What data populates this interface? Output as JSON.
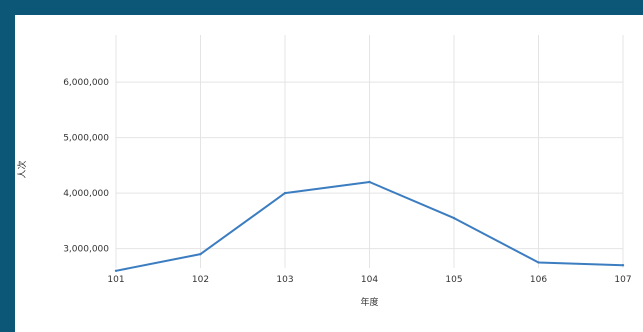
{
  "chart_data": {
    "type": "line",
    "title": "",
    "xlabel": "年度",
    "ylabel": "人次",
    "x": [
      "101",
      "102",
      "103",
      "104",
      "105",
      "106",
      "107"
    ],
    "series": [
      {
        "values": [
          2600000,
          2900000,
          4000000,
          4200000,
          3550000,
          2750000,
          2700000
        ]
      }
    ],
    "yticks": [
      3000000,
      4000000,
      5000000,
      6000000
    ],
    "ytick_labels": [
      "3,000,000",
      "4,000,000",
      "5,000,000",
      "6,000,000"
    ],
    "ylim": [
      2650000,
      6850000
    ],
    "grid": true,
    "legend": "none",
    "colors": {
      "line": "#3b7dc0",
      "frame": "#0c5678",
      "grid": "#e4e4e4"
    }
  }
}
